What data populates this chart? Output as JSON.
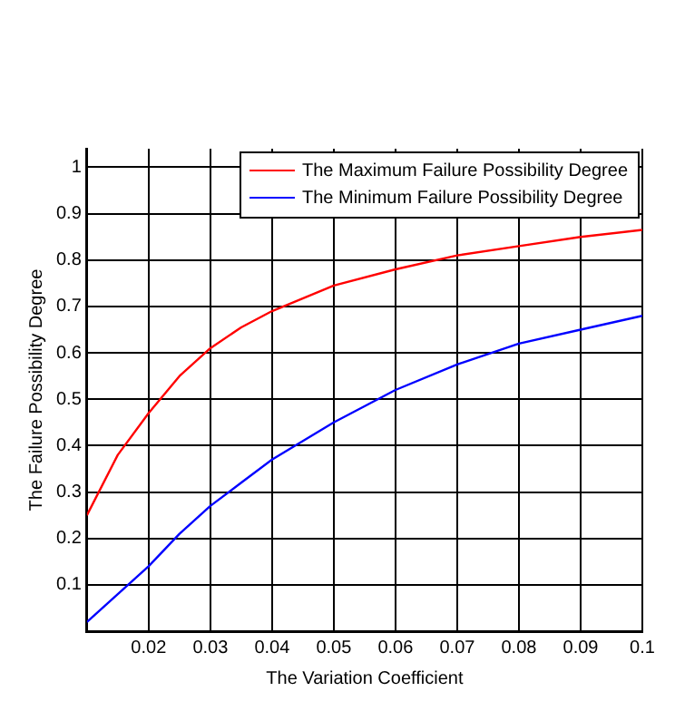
{
  "chart_data": {
    "type": "line",
    "xlabel": "The Variation Coefficient",
    "ylabel": "The Failure Possibility Degree",
    "x": [
      0.01,
      0.015,
      0.02,
      0.025,
      0.03,
      0.035,
      0.04,
      0.05,
      0.06,
      0.07,
      0.08,
      0.09,
      0.1
    ],
    "series": [
      {
        "name": "The Maximum Failure Possibility Degree",
        "color": "#ff0000",
        "values": [
          0.25,
          0.38,
          0.47,
          0.55,
          0.61,
          0.655,
          0.69,
          0.745,
          0.78,
          0.81,
          0.83,
          0.85,
          0.865
        ]
      },
      {
        "name": "The Minimum Failure Possibility Degree",
        "color": "#0000ff",
        "values": [
          0.02,
          0.08,
          0.14,
          0.21,
          0.27,
          0.32,
          0.37,
          0.45,
          0.52,
          0.575,
          0.62,
          0.65,
          0.68
        ]
      }
    ],
    "xlim": [
      0.01,
      0.1
    ],
    "xticks": [
      0.02,
      0.03,
      0.04,
      0.05,
      0.06,
      0.07,
      0.08,
      0.09,
      0.1
    ],
    "ylim": [
      0,
      1.04
    ],
    "yticks": [
      0.1,
      0.2,
      0.3,
      0.4,
      0.5,
      0.6,
      0.7,
      0.8,
      0.9,
      1
    ],
    "grid": true,
    "legend": "top right",
    "marker": "none",
    "line_style": "solid"
  }
}
